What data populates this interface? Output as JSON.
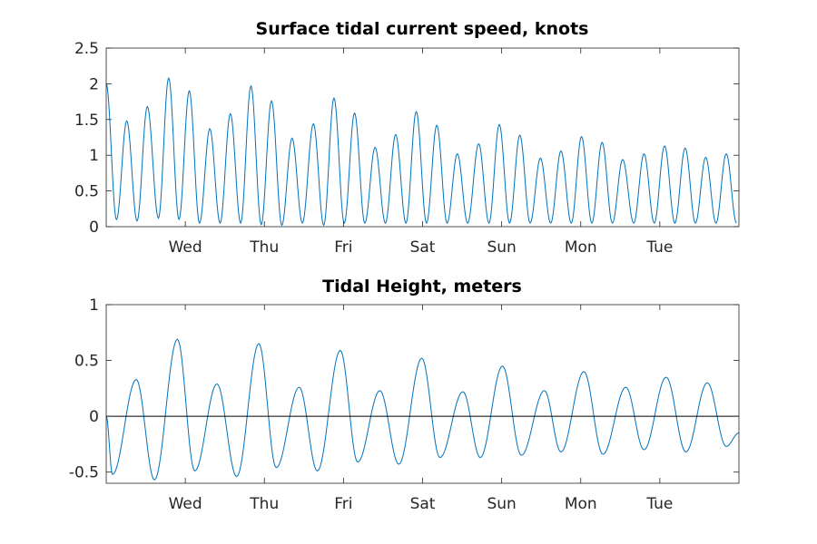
{
  "chart_data": [
    {
      "type": "line",
      "title": "Surface tidal current speed, knots",
      "xlabel": "",
      "ylabel": "",
      "x_unit": "days",
      "xlim": [
        0,
        8
      ],
      "ylim": [
        0,
        2.5
      ],
      "y_ticks": [
        "0",
        "0.5",
        "1",
        "1.5",
        "2",
        "2.5"
      ],
      "y_tick_values": [
        0,
        0.5,
        1,
        1.5,
        2,
        2.5
      ],
      "x_ticks": [
        "Wed",
        "Thu",
        "Fri",
        "Sat",
        "Sun",
        "Mon",
        "Tue"
      ],
      "x_tick_values": [
        1,
        2,
        3,
        4,
        5,
        6,
        7
      ],
      "line_color": "#0072BD",
      "series": [
        {
          "name": "",
          "x": [
            0.0,
            0.13,
            0.26,
            0.39,
            0.52,
            0.66,
            0.79,
            0.92,
            1.05,
            1.18,
            1.31,
            1.44,
            1.57,
            1.7,
            1.83,
            1.96,
            2.09,
            2.22,
            2.35,
            2.48,
            2.62,
            2.75,
            2.88,
            3.01,
            3.14,
            3.27,
            3.4,
            3.53,
            3.66,
            3.79,
            3.92,
            4.05,
            4.18,
            4.31,
            4.44,
            4.57,
            4.71,
            4.84,
            4.97,
            5.1,
            5.23,
            5.36,
            5.49,
            5.62,
            5.75,
            5.88,
            6.01,
            6.14,
            6.27,
            6.4,
            6.53,
            6.67,
            6.8,
            6.93,
            7.06,
            7.19,
            7.32,
            7.45,
            7.58,
            7.71,
            7.84,
            7.97
          ],
          "values": [
            2.0,
            0.1,
            1.48,
            0.08,
            1.68,
            0.12,
            2.08,
            0.1,
            1.9,
            0.05,
            1.37,
            0.05,
            1.58,
            0.05,
            1.97,
            0.03,
            1.76,
            0.02,
            1.24,
            0.05,
            1.44,
            0.02,
            1.8,
            0.05,
            1.59,
            0.05,
            1.11,
            0.05,
            1.29,
            0.05,
            1.61,
            0.05,
            1.42,
            0.05,
            1.02,
            0.05,
            1.16,
            0.05,
            1.43,
            0.05,
            1.28,
            0.05,
            0.96,
            0.05,
            1.06,
            0.05,
            1.26,
            0.05,
            1.18,
            0.05,
            0.94,
            0.05,
            1.02,
            0.05,
            1.13,
            0.05,
            1.1,
            0.05,
            0.97,
            0.05,
            1.02,
            0.05
          ]
        }
      ]
    },
    {
      "type": "line",
      "title": "Tidal Height, meters",
      "xlabel": "",
      "ylabel": "",
      "x_unit": "days",
      "xlim": [
        0,
        8
      ],
      "ylim": [
        -0.6,
        1
      ],
      "y_ticks": [
        "-0.5",
        "0",
        "0.5",
        "1"
      ],
      "y_tick_values": [
        -0.5,
        0,
        0.5,
        1
      ],
      "x_ticks": [
        "Wed",
        "Thu",
        "Fri",
        "Sat",
        "Sun",
        "Mon",
        "Tue"
      ],
      "x_tick_values": [
        1,
        2,
        3,
        4,
        5,
        6,
        7
      ],
      "zero_line": true,
      "line_color": "#0072BD",
      "series": [
        {
          "name": "",
          "x": [
            0.0,
            0.08,
            0.38,
            0.61,
            0.9,
            1.12,
            1.4,
            1.65,
            1.93,
            2.15,
            2.44,
            2.67,
            2.96,
            3.18,
            3.46,
            3.7,
            3.99,
            4.22,
            4.51,
            4.73,
            5.01,
            5.25,
            5.54,
            5.75,
            6.04,
            6.28,
            6.57,
            6.8,
            7.08,
            7.33,
            7.6,
            7.84,
            8.0
          ],
          "values": [
            0.0,
            -0.52,
            0.33,
            -0.57,
            0.69,
            -0.49,
            0.29,
            -0.54,
            0.65,
            -0.46,
            0.26,
            -0.49,
            0.59,
            -0.41,
            0.23,
            -0.43,
            0.52,
            -0.37,
            0.22,
            -0.37,
            0.45,
            -0.35,
            0.23,
            -0.32,
            0.4,
            -0.34,
            0.26,
            -0.3,
            0.35,
            -0.32,
            0.3,
            -0.27,
            -0.15
          ]
        }
      ]
    }
  ]
}
